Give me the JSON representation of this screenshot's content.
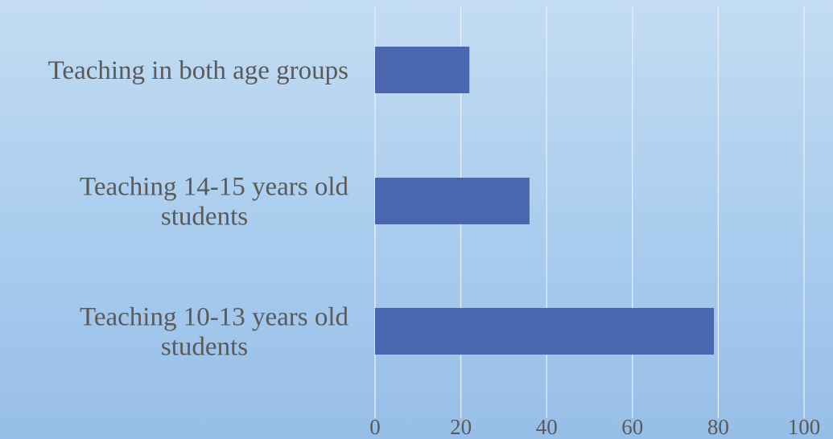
{
  "chart_data": {
    "type": "bar",
    "orientation": "horizontal",
    "categories": [
      "Teaching in both age groups",
      "Teaching 14-15 years old students",
      "Teaching 10-13 years old students"
    ],
    "category_label_lines": [
      [
        "Teaching in both age groups"
      ],
      [
        "Teaching 14-15 years old",
        "students"
      ],
      [
        "Teaching 10-13 years old",
        "students"
      ]
    ],
    "values": [
      22,
      36,
      79
    ],
    "xlim": [
      0,
      100
    ],
    "xticks": [
      "0",
      "20",
      "40",
      "60",
      "80",
      "100"
    ],
    "grid": true,
    "bar_color": "#4966ae",
    "title": "",
    "xlabel": "",
    "ylabel": ""
  }
}
